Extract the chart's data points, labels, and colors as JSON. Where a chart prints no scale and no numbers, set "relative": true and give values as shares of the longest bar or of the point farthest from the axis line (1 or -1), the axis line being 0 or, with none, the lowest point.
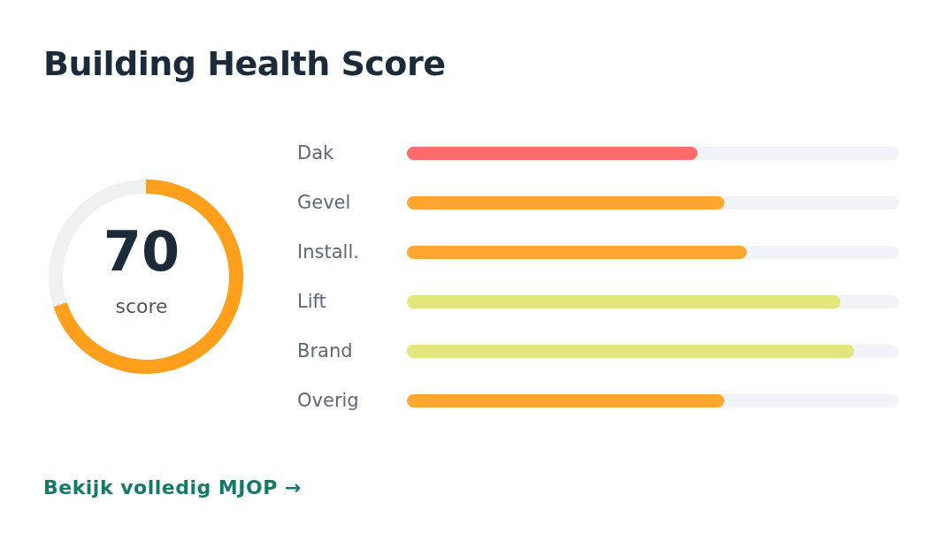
{
  "chart_data": [
    {
      "type": "donut",
      "title": "Building Health Score",
      "categories": [
        null,
        null
      ],
      "values": [
        70,
        30
      ],
      "colors": [
        "#ff9f1c",
        "#eff0f0"
      ],
      "value_labels": [
        "70",
        null
      ],
      "annotations": [
        "score"
      ]
    },
    {
      "type": "bar",
      "orientation": "horizontal",
      "relative": true,
      "categories": [
        "Dak",
        "Gevel",
        "Install.",
        "Lift",
        "Brand",
        "Overig"
      ],
      "values": [
        0.65,
        0.71,
        0.76,
        0.97,
        1,
        0.71
      ],
      "colors": [
        "#ff6a6a",
        "#ffa630",
        "#ffa630",
        "#e3e67c",
        "#e3e67c",
        "#ffa630"
      ],
      "annotations": [
        "Bekijk volledig MJOP →"
      ]
    }
  ]
}
